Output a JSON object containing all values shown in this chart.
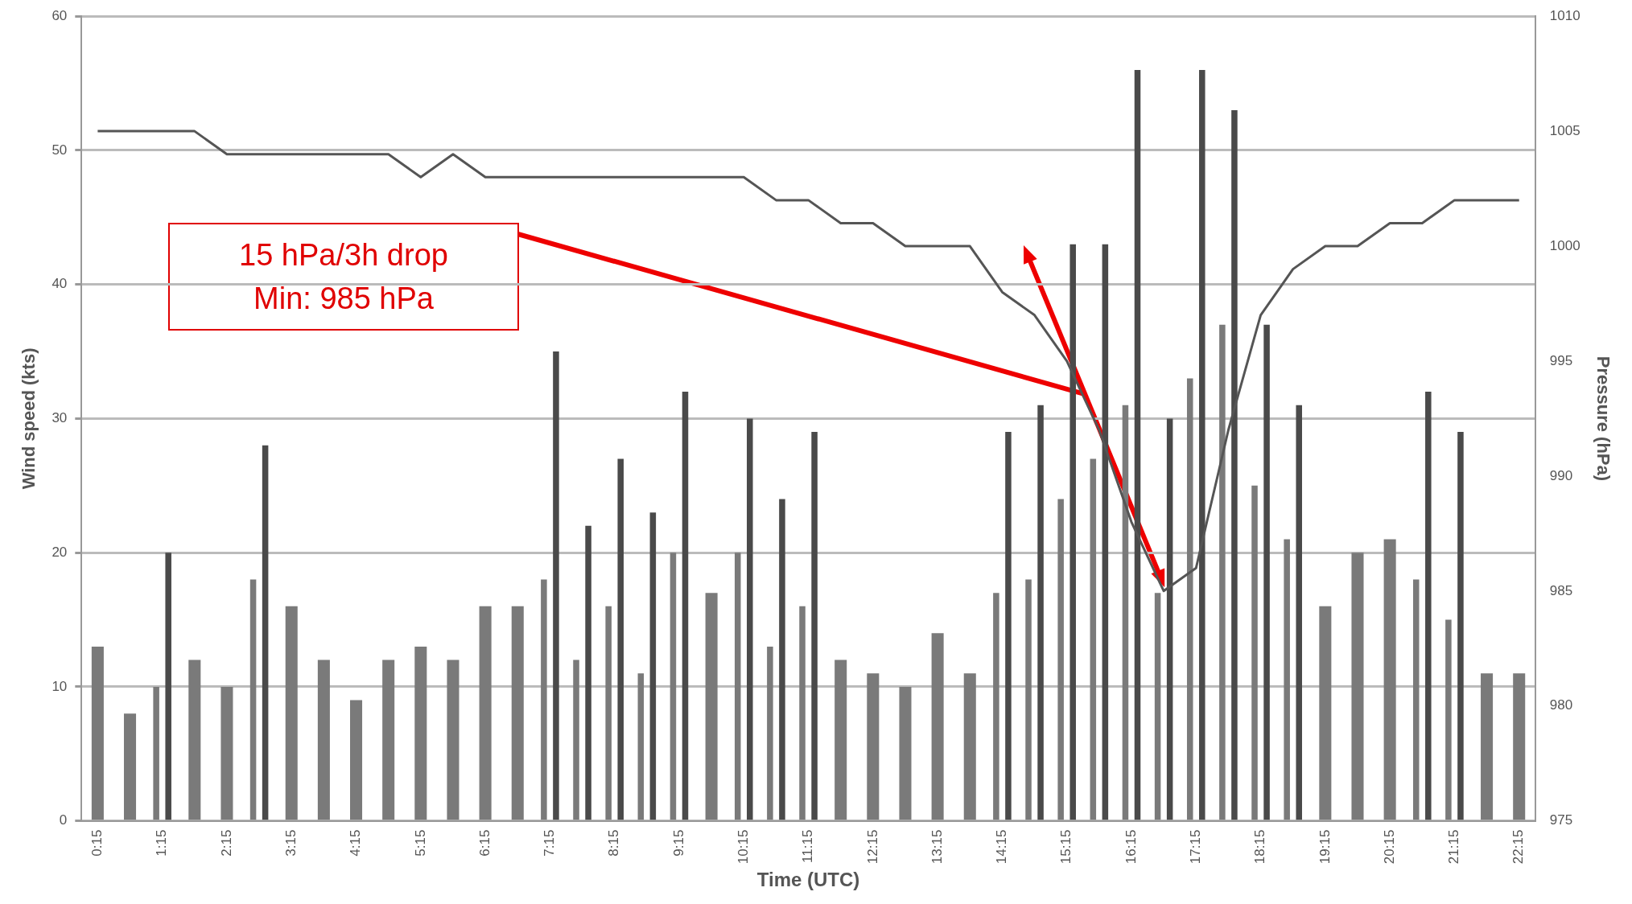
{
  "chart_data": {
    "type": "bar",
    "xlabel": "Time (UTC)",
    "ylabel": "Wind speed (kts)",
    "y2label": "Pressure (hPa)",
    "categories": [
      "0:15",
      null,
      "1:15",
      null,
      "2:15",
      null,
      "3:15",
      null,
      "4:15",
      null,
      "5:15",
      null,
      "6:15",
      null,
      "7:15",
      null,
      "8:15",
      null,
      "9:15",
      null,
      "10:15",
      null,
      "11:15",
      null,
      "12:15",
      null,
      "13:15",
      null,
      "14:15",
      null,
      "15:15",
      null,
      "16:15",
      null,
      "17:15",
      null,
      "18:15",
      null,
      "19:15",
      null,
      "20:15",
      null,
      "21:15",
      null,
      "22:15"
    ],
    "series": [
      {
        "color": "#7a7a7a",
        "values": [
          13,
          8,
          10,
          12,
          10,
          18,
          16,
          12,
          9,
          12,
          13,
          12,
          16,
          16,
          18,
          12,
          16,
          11,
          20,
          17,
          20,
          13,
          16,
          12,
          11,
          10,
          14,
          11,
          17,
          18,
          24,
          27,
          31,
          17,
          33,
          37,
          25,
          21,
          16,
          20,
          21,
          18,
          15,
          11,
          11
        ]
      },
      {
        "color": "#4a4a4a",
        "values": [
          null,
          null,
          20,
          null,
          null,
          28,
          null,
          null,
          null,
          null,
          null,
          null,
          null,
          null,
          35,
          22,
          27,
          23,
          32,
          null,
          30,
          24,
          29,
          null,
          null,
          null,
          null,
          null,
          29,
          31,
          43,
          43,
          56,
          30,
          56,
          53,
          37,
          31,
          null,
          null,
          null,
          32,
          29,
          null,
          null
        ]
      },
      {
        "type": "line",
        "axis": "y2",
        "color": "#555555",
        "values": [
          1005,
          1005,
          1005,
          1005,
          1004,
          1004,
          1004,
          1004,
          1004,
          1004,
          1003,
          1004,
          1003,
          1003,
          1003,
          1003,
          1003,
          1003,
          1003,
          1003,
          1003,
          1002,
          1002,
          1001,
          1001,
          1000,
          1000,
          1000,
          998,
          997,
          995,
          992,
          988,
          985,
          986,
          992,
          997,
          999,
          1000,
          1000,
          1001,
          1001,
          1002,
          1002,
          1002
        ]
      }
    ],
    "ylim": [
      0,
      60
    ],
    "yticks": [
      0,
      10,
      20,
      30,
      40,
      50,
      60
    ],
    "y2lim": [
      975,
      1010
    ],
    "y2ticks": [
      975,
      980,
      985,
      990,
      995,
      1000,
      1005,
      1010
    ],
    "grid": "y",
    "marker": "none",
    "annotations": [
      "15 hPa/3h drop\nMin: 985 hPa"
    ]
  }
}
